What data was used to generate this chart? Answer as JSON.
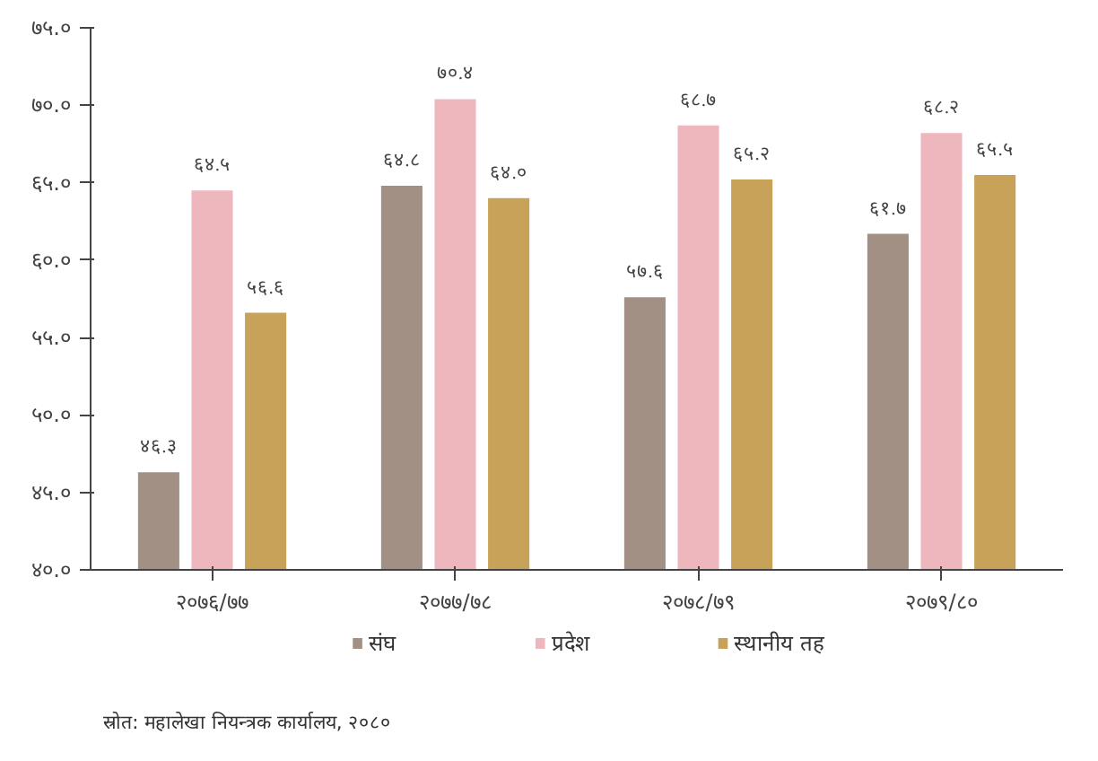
{
  "chart_data": {
    "type": "bar",
    "categories": [
      "२०७६/७७",
      "२०७७/७८",
      "२०७८/७९",
      "२०७९/८०"
    ],
    "series": [
      {
        "name": "संघ",
        "color": "#a39084",
        "values": [
          46.3,
          64.8,
          57.6,
          61.7
        ],
        "value_labels": [
          "४६.३",
          "६४.८",
          "५७.६",
          "६१.७"
        ]
      },
      {
        "name": "प्रदेश",
        "color": "#eeb7bd",
        "values": [
          64.5,
          70.4,
          68.7,
          68.2
        ],
        "value_labels": [
          "६४.५",
          "७०.४",
          "६८.७",
          "६८.२"
        ]
      },
      {
        "name": "स्थानीय तह",
        "color": "#c7a258",
        "values": [
          56.6,
          64.0,
          65.2,
          65.5
        ],
        "value_labels": [
          "५६.६",
          "६४.०",
          "६५.२",
          "६५.५"
        ]
      }
    ],
    "ylim": [
      40,
      75
    ],
    "yticks": [
      {
        "value": 40,
        "label": "४०.०"
      },
      {
        "value": 45,
        "label": "४५.०"
      },
      {
        "value": 50,
        "label": "५०.०"
      },
      {
        "value": 55,
        "label": "५५.०"
      },
      {
        "value": 60,
        "label": "६०.०"
      },
      {
        "value": 65,
        "label": "६५.०"
      },
      {
        "value": 70,
        "label": "७०.०"
      },
      {
        "value": 75,
        "label": "७५.०"
      }
    ],
    "legend": "bottom",
    "grid": false,
    "annotations": [
      "स्रोत: महालेखा नियन्त्रक कार्यालय, २०८०"
    ]
  }
}
